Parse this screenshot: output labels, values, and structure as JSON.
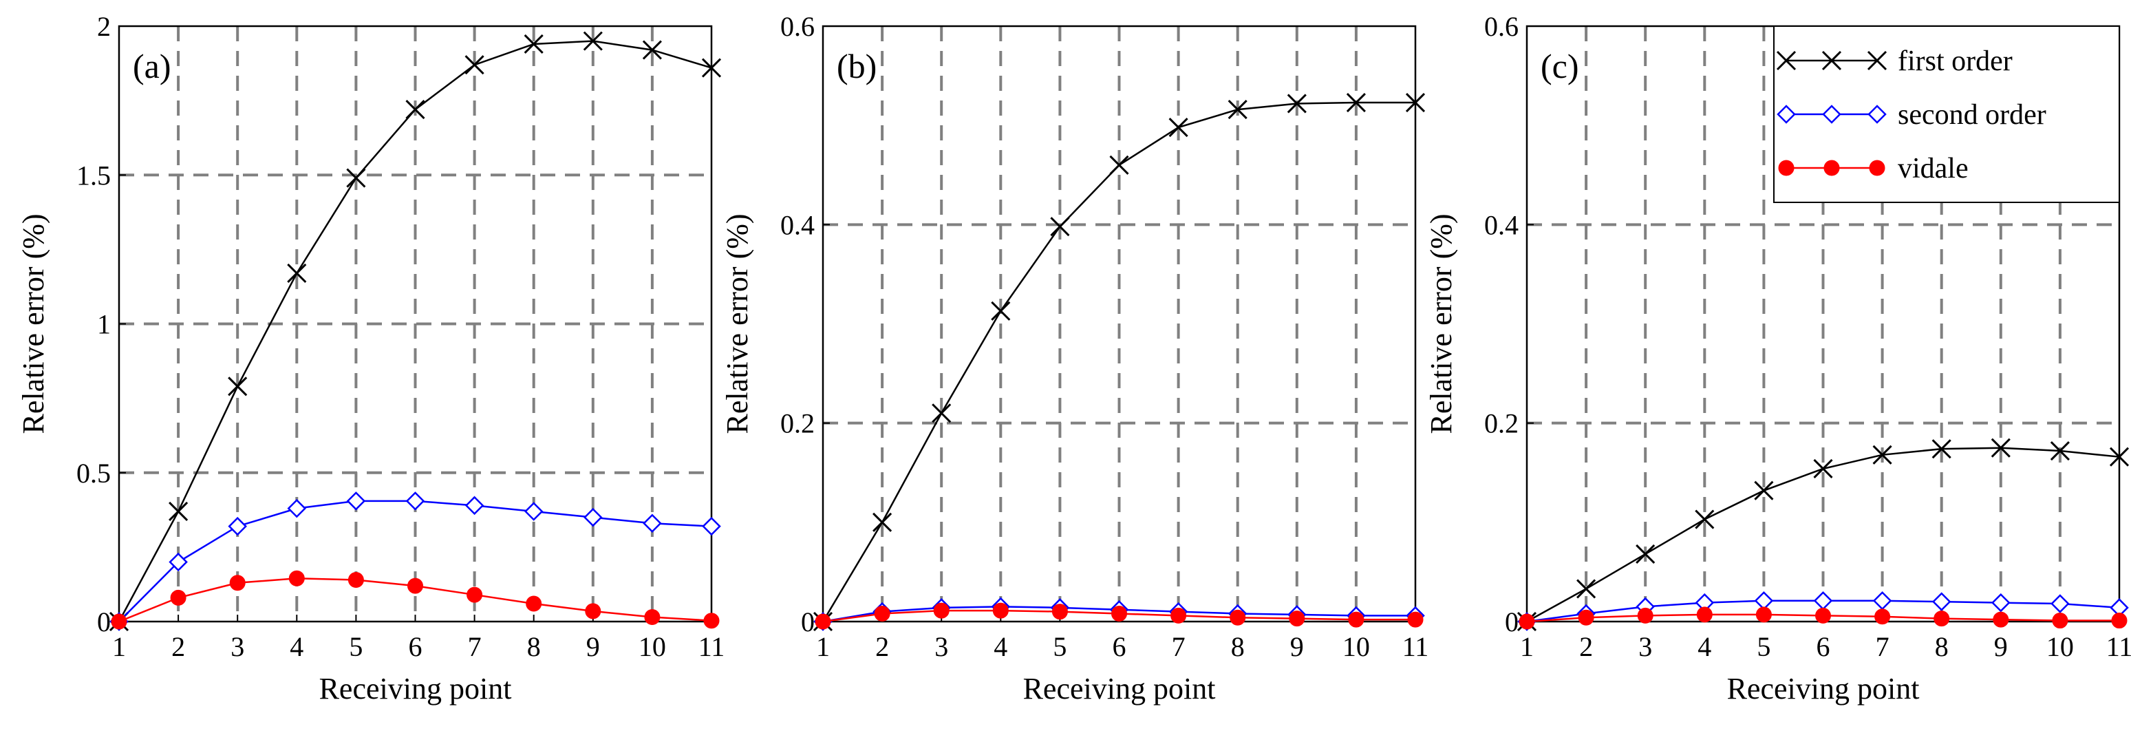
{
  "chart_data": [
    {
      "type": "line",
      "panel": "(a)",
      "xlabel": "Receiving point",
      "ylabel": "Relative error (%)",
      "x": [
        1,
        2,
        3,
        4,
        5,
        6,
        7,
        8,
        9,
        10,
        11
      ],
      "xlim": [
        1,
        11
      ],
      "ylim": [
        0,
        2
      ],
      "yticks": [
        0,
        0.5,
        1,
        1.5,
        2
      ],
      "ytick_labels": [
        "0",
        "0.5",
        "1",
        "1.5",
        "2"
      ],
      "grid": true,
      "series": [
        {
          "name": "first order",
          "values": [
            0,
            0.37,
            0.79,
            1.17,
            1.49,
            1.72,
            1.87,
            1.94,
            1.95,
            1.92,
            1.86
          ]
        },
        {
          "name": "second order",
          "values": [
            0,
            0.2,
            0.32,
            0.38,
            0.405,
            0.405,
            0.39,
            0.37,
            0.35,
            0.33,
            0.32
          ]
        },
        {
          "name": "vidale",
          "values": [
            0,
            0.08,
            0.13,
            0.145,
            0.14,
            0.12,
            0.09,
            0.06,
            0.035,
            0.015,
            0.003
          ]
        }
      ]
    },
    {
      "type": "line",
      "panel": "(b)",
      "xlabel": "Receiving point",
      "ylabel": "Relative error (%)",
      "x": [
        1,
        2,
        3,
        4,
        5,
        6,
        7,
        8,
        9,
        10,
        11
      ],
      "xlim": [
        1,
        11
      ],
      "ylim": [
        0,
        0.6
      ],
      "yticks": [
        0,
        0.2,
        0.4,
        0.6
      ],
      "ytick_labels": [
        "0",
        "0.2",
        "0.4",
        "0.6"
      ],
      "grid": true,
      "series": [
        {
          "name": "first order",
          "values": [
            0,
            0.1,
            0.21,
            0.313,
            0.398,
            0.46,
            0.498,
            0.516,
            0.522,
            0.523,
            0.523
          ]
        },
        {
          "name": "second order",
          "values": [
            0,
            0.01,
            0.014,
            0.015,
            0.014,
            0.012,
            0.01,
            0.008,
            0.007,
            0.006,
            0.006
          ]
        },
        {
          "name": "vidale",
          "values": [
            0,
            0.008,
            0.011,
            0.011,
            0.01,
            0.008,
            0.006,
            0.004,
            0.003,
            0.002,
            0.002
          ]
        }
      ]
    },
    {
      "type": "line",
      "panel": "(c)",
      "xlabel": "Receiving point",
      "ylabel": "Relative error (%)",
      "x": [
        1,
        2,
        3,
        4,
        5,
        6,
        7,
        8,
        9,
        10,
        11
      ],
      "xlim": [
        1,
        11
      ],
      "ylim": [
        0,
        0.6
      ],
      "yticks": [
        0,
        0.2,
        0.4,
        0.6
      ],
      "ytick_labels": [
        "0",
        "0.2",
        "0.4",
        "0.6"
      ],
      "grid": true,
      "legend": "top-right",
      "series": [
        {
          "name": "first order",
          "values": [
            0,
            0.033,
            0.068,
            0.103,
            0.132,
            0.154,
            0.168,
            0.174,
            0.175,
            0.172,
            0.166
          ]
        },
        {
          "name": "second order",
          "values": [
            0,
            0.008,
            0.015,
            0.019,
            0.021,
            0.021,
            0.021,
            0.02,
            0.019,
            0.018,
            0.014
          ]
        },
        {
          "name": "vidale",
          "values": [
            0,
            0.004,
            0.006,
            0.007,
            0.007,
            0.006,
            0.005,
            0.003,
            0.002,
            0.001,
            0.001
          ]
        }
      ]
    }
  ],
  "xtick_labels": [
    "1",
    "2",
    "3",
    "4",
    "5",
    "6",
    "7",
    "8",
    "9",
    "10",
    "11"
  ],
  "legend": {
    "entries": [
      "first order",
      "second order",
      "vidale"
    ]
  },
  "colors": {
    "first_order": "#000000",
    "second_order": "#0000ff",
    "vidale": "#ff0000",
    "grid": "#808080",
    "axes": "#000000"
  },
  "markers": {
    "first_order": "x-mark-icon",
    "second_order": "diamond-icon",
    "vidale": "filled-circle-icon"
  }
}
